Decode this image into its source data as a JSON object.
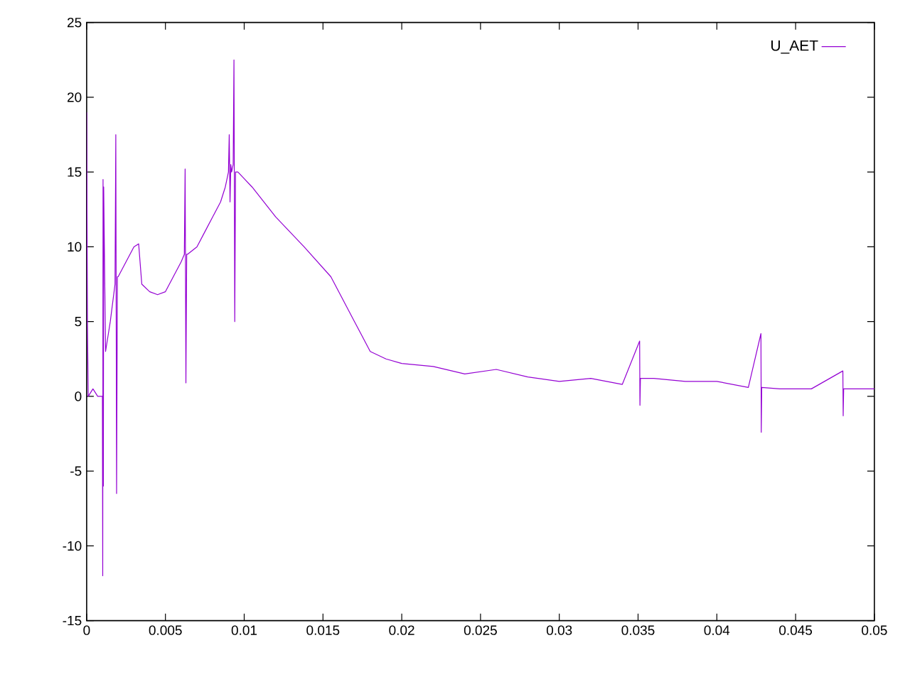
{
  "chart_data": {
    "type": "line",
    "xlim": [
      0,
      0.05
    ],
    "ylim": [
      -15,
      25
    ],
    "xticks": [
      0,
      0.005,
      0.01,
      0.015,
      0.02,
      0.025,
      0.03,
      0.035,
      0.04,
      0.045,
      0.05
    ],
    "yticks": [
      -15,
      -10,
      -5,
      0,
      5,
      10,
      15,
      20,
      25
    ],
    "legend": "top right",
    "grid": false,
    "marker": "none",
    "line_style": "solid",
    "series": [
      {
        "name": "U_AET",
        "color": "#9400d3",
        "x": [
          0,
          5e-05,
          0.0001,
          0.0004,
          0.0007,
          0.001,
          0.00102,
          0.00104,
          0.00106,
          0.00108,
          0.0012,
          0.0015,
          0.0018,
          0.00185,
          0.0019,
          0.00195,
          0.002,
          0.0025,
          0.003,
          0.0033,
          0.0035,
          0.004,
          0.0045,
          0.005,
          0.0055,
          0.006,
          0.0062,
          0.00625,
          0.0063,
          0.00635,
          0.0064,
          0.007,
          0.0075,
          0.008,
          0.0085,
          0.0088,
          0.009,
          0.00905,
          0.0091,
          0.00915,
          0.0092,
          0.0093,
          0.00935,
          0.0094,
          0.00945,
          0.0096,
          0.0105,
          0.012,
          0.0138,
          0.0155,
          0.017,
          0.018,
          0.019,
          0.02,
          0.022,
          0.024,
          0.026,
          0.028,
          0.03,
          0.032,
          0.034,
          0.0351,
          0.03512,
          0.03515,
          0.036,
          0.038,
          0.04,
          0.042,
          0.0428,
          0.04282,
          0.04285,
          0.044,
          0.046,
          0.048,
          0.04802,
          0.04805,
          0.05
        ],
        "values": [
          19,
          5,
          0,
          0.5,
          0,
          0,
          -12,
          14.5,
          -6,
          14,
          3,
          5,
          7.5,
          17.5,
          -6.5,
          8,
          8,
          9,
          10,
          10.2,
          7.5,
          7,
          6.8,
          7,
          8,
          9,
          9.5,
          15.2,
          0.9,
          9.5,
          9.5,
          10,
          11,
          12,
          13,
          14,
          15,
          17.5,
          13,
          15.5,
          15,
          15.5,
          22.5,
          5,
          15,
          15,
          14,
          12,
          10,
          8,
          5,
          3,
          2.5,
          2.2,
          2,
          1.5,
          1.8,
          1.3,
          1,
          1.2,
          0.8,
          3.7,
          -0.6,
          1.2,
          1.2,
          1,
          1,
          0.6,
          4.2,
          -2.4,
          0.6,
          0.5,
          0.5,
          1.7,
          -1.3,
          0.5,
          0.5
        ]
      }
    ]
  }
}
